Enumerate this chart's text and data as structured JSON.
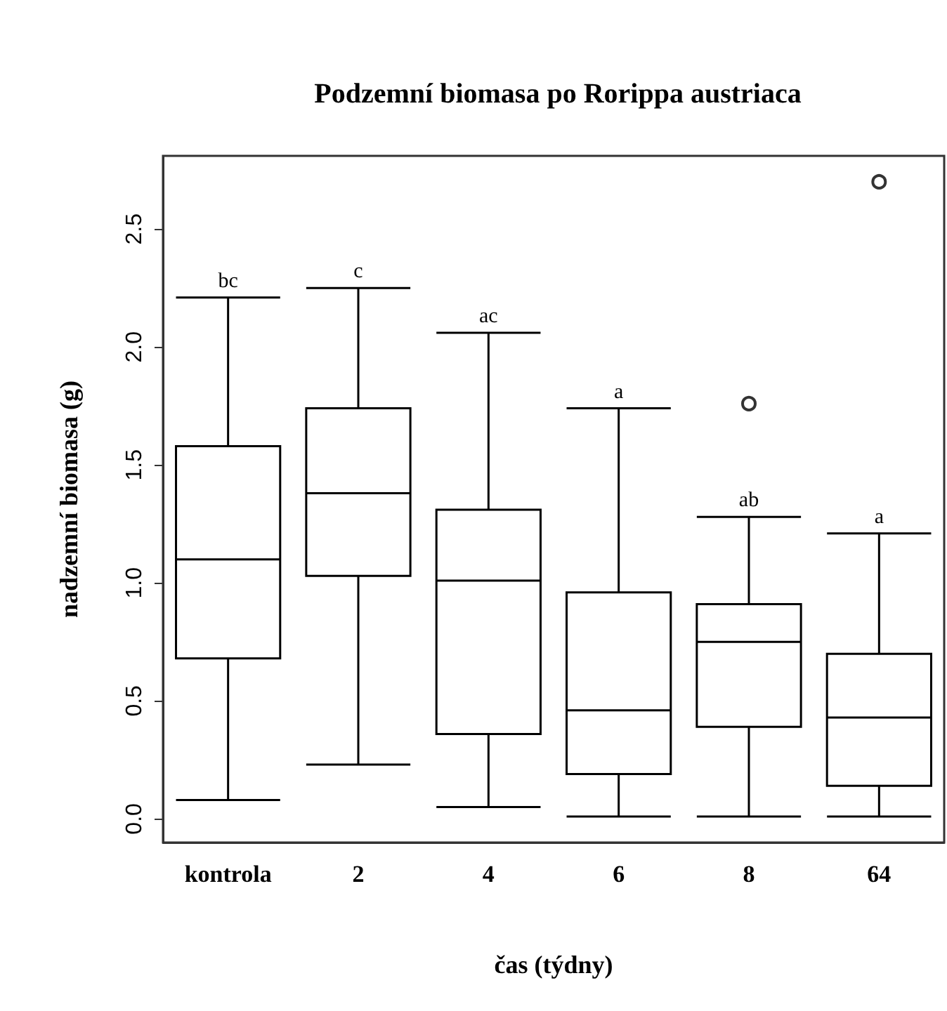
{
  "chart_data": {
    "type": "box",
    "title": "Podzemní biomasa po Rorippa austriaca",
    "xlabel": "čas (týdny)",
    "ylabel": "nadzemní biomasa (g)",
    "categories": [
      "kontrola",
      "2",
      "4",
      "6",
      "8",
      "64"
    ],
    "boxes": [
      {
        "low": 0.08,
        "q1": 0.68,
        "median": 1.1,
        "q3": 1.58,
        "high": 2.21
      },
      {
        "low": 0.23,
        "q1": 1.03,
        "median": 1.38,
        "q3": 1.74,
        "high": 2.25
      },
      {
        "low": 0.05,
        "q1": 0.36,
        "median": 1.01,
        "q3": 1.31,
        "high": 2.06
      },
      {
        "low": 0.01,
        "q1": 0.19,
        "median": 0.46,
        "q3": 0.96,
        "high": 1.74
      },
      {
        "low": 0.01,
        "q1": 0.39,
        "median": 0.75,
        "q3": 0.91,
        "high": 1.28,
        "outliers": [
          1.76
        ]
      },
      {
        "low": 0.01,
        "q1": 0.14,
        "median": 0.43,
        "q3": 0.7,
        "high": 1.21,
        "outliers": [
          2.7
        ]
      }
    ],
    "color": "#000000",
    "ylim": [
      -0.1,
      2.81
    ],
    "yticks": [
      {
        "value": 0,
        "label": "0.0"
      },
      {
        "value": 0.5,
        "label": "0.5"
      },
      {
        "value": 1,
        "label": "1.0"
      },
      {
        "value": 1.5,
        "label": "1.5"
      },
      {
        "value": 2,
        "label": "2.0"
      },
      {
        "value": 2.5,
        "label": "2.5"
      }
    ],
    "grid": false,
    "legend": false,
    "annotations": [
      {
        "text": "bc",
        "x": "kontrola",
        "y": 2.21
      },
      {
        "text": "c",
        "x": "2",
        "y": 2.25
      },
      {
        "text": "ac",
        "x": "4",
        "y": 2.06
      },
      {
        "text": "a",
        "x": "6",
        "y": 1.74
      },
      {
        "text": "ab",
        "x": "8",
        "y": 1.28
      },
      {
        "text": "a",
        "x": "64",
        "y": 1.21
      }
    ]
  }
}
